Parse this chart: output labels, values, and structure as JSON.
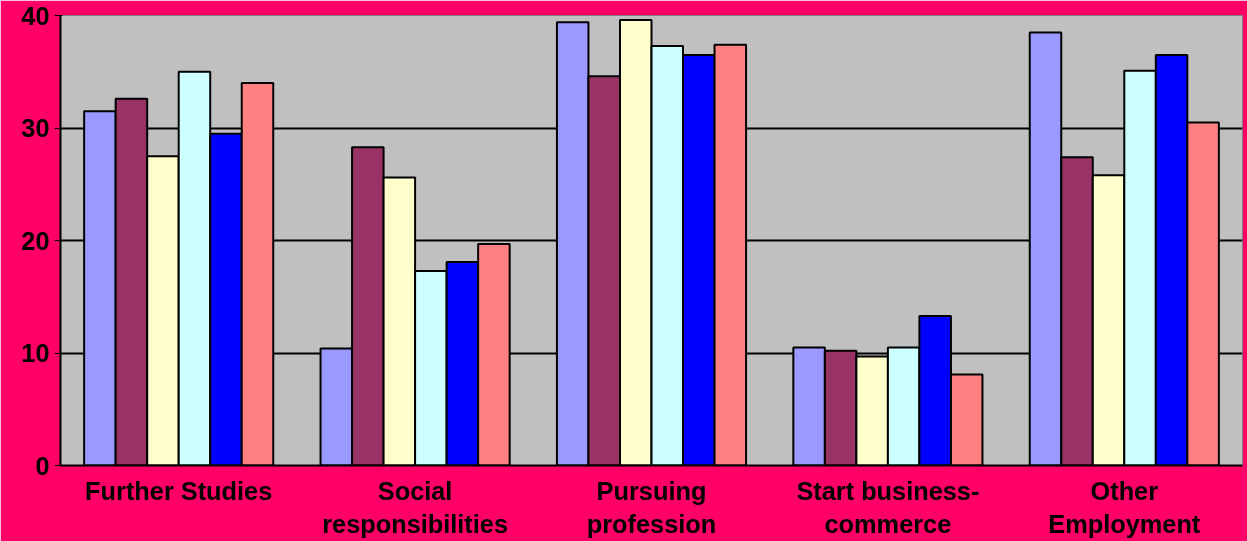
{
  "chart_data": {
    "type": "bar",
    "categories": [
      "Further Studies",
      "Social\nresponsibilities",
      "Pursuing\nprofession",
      "Start business-\ncommerce",
      "Other\nEmployment"
    ],
    "series": [
      {
        "color": "#9999ff",
        "values": [
          31.5,
          10.4,
          39.4,
          10.5,
          38.5
        ]
      },
      {
        "color": "#993366",
        "values": [
          32.6,
          28.3,
          34.6,
          10.2,
          27.4
        ]
      },
      {
        "color": "#ffffcc",
        "values": [
          27.5,
          25.6,
          39.6,
          9.7,
          25.8
        ]
      },
      {
        "color": "#ccffff",
        "values": [
          35,
          17.3,
          37.3,
          10.5,
          35.1
        ]
      },
      {
        "color": "#0000ff",
        "values": [
          29.5,
          18.1,
          36.5,
          13.3,
          36.5
        ]
      },
      {
        "color": "#ff8080",
        "values": [
          34,
          19.7,
          37.4,
          8.1,
          30.5
        ]
      }
    ],
    "ylim": [
      0,
      40
    ],
    "yticks": [
      0,
      10,
      20,
      30,
      40
    ],
    "grid": "y"
  }
}
